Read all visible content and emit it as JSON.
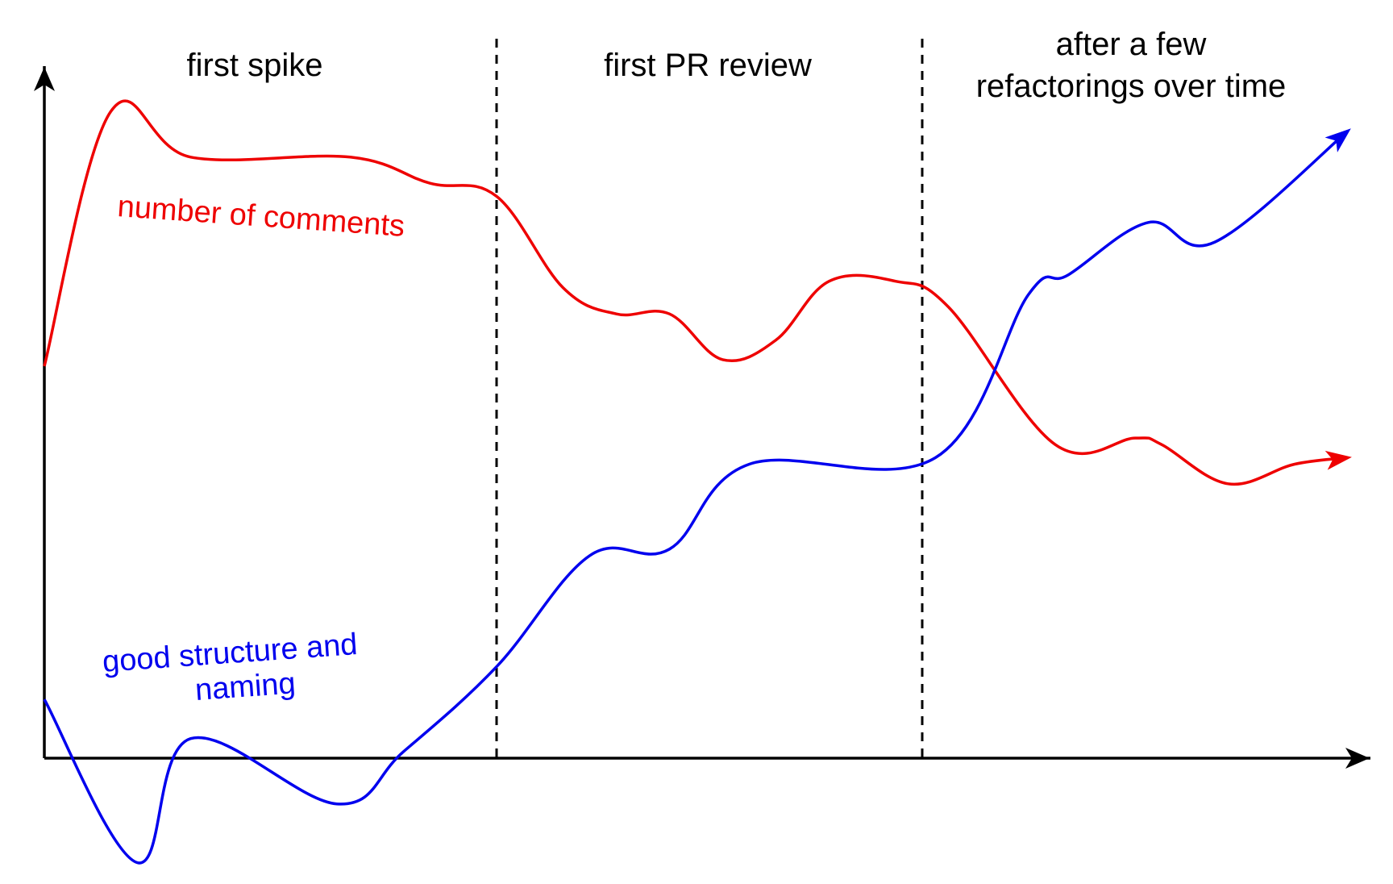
{
  "chart_data": {
    "type": "line",
    "title": "",
    "xlabel": "",
    "ylabel": "",
    "grid": false,
    "phases": [
      {
        "lines": [
          "first spike"
        ]
      },
      {
        "lines": [
          "first PR review"
        ]
      },
      {
        "lines": [
          "after a few",
          "refactorings over time"
        ]
      }
    ],
    "phase_boundaries": [
      0.34,
      0.66
    ],
    "series": [
      {
        "name": "number of comments",
        "label_lines": [
          "number of comments"
        ],
        "color": "#ee0000",
        "points": [
          [
            0.0,
            0.6
          ],
          [
            0.05,
            0.99
          ],
          [
            0.11,
            0.92
          ],
          [
            0.23,
            0.92
          ],
          [
            0.29,
            0.88
          ],
          [
            0.34,
            0.86
          ],
          [
            0.39,
            0.72
          ],
          [
            0.43,
            0.68
          ],
          [
            0.47,
            0.68
          ],
          [
            0.51,
            0.61
          ],
          [
            0.55,
            0.64
          ],
          [
            0.59,
            0.73
          ],
          [
            0.64,
            0.73
          ],
          [
            0.68,
            0.69
          ],
          [
            0.76,
            0.48
          ],
          [
            0.82,
            0.49
          ],
          [
            0.84,
            0.48
          ],
          [
            0.89,
            0.42
          ],
          [
            0.94,
            0.45
          ],
          [
            0.98,
            0.46
          ]
        ]
      },
      {
        "name": "good structure and naming",
        "label_lines": [
          "good structure and",
          "naming"
        ],
        "color": "#0000ee",
        "points": [
          [
            0.0,
            0.09
          ],
          [
            0.07,
            -0.16
          ],
          [
            0.11,
            0.03
          ],
          [
            0.22,
            -0.07
          ],
          [
            0.27,
            0.01
          ],
          [
            0.34,
            0.14
          ],
          [
            0.41,
            0.31
          ],
          [
            0.47,
            0.32
          ],
          [
            0.53,
            0.45
          ],
          [
            0.67,
            0.46
          ],
          [
            0.74,
            0.71
          ],
          [
            0.77,
            0.74
          ],
          [
            0.83,
            0.82
          ],
          [
            0.88,
            0.79
          ],
          [
            0.98,
            0.96
          ]
        ]
      }
    ]
  }
}
